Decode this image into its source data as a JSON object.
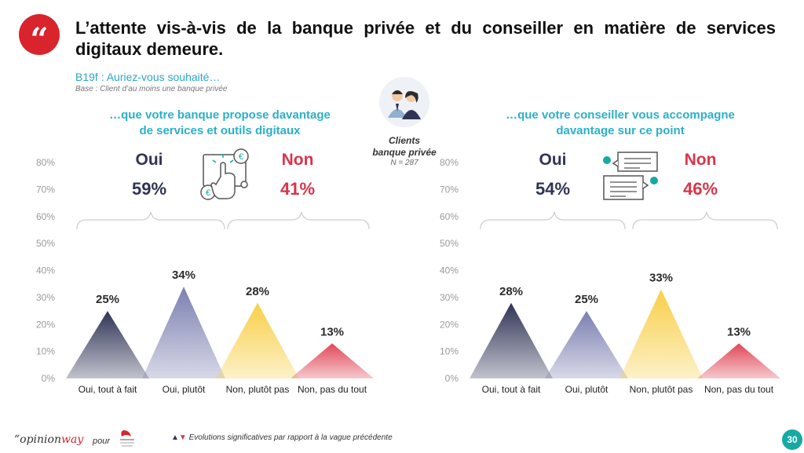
{
  "title": "L’attente vis-à-vis de la banque privée et du conseiller en matière de services digitaux demeure.",
  "question": "B19f : Auriez-vous souhaité…",
  "base": "Base : Client d’au moins une banque privée",
  "center": {
    "label_line1": "Clients",
    "label_line2": "banque privée",
    "n": "N = 287"
  },
  "left": {
    "subheading_line1": "…que votre banque propose davantage",
    "subheading_line2": "de services et outils digitaux",
    "oui_label": "Oui",
    "oui_value": "59%",
    "non_label": "Non",
    "non_value": "41%"
  },
  "right": {
    "subheading_line1": "…que votre conseiller vous accompagne",
    "subheading_line2": "davantage sur ce point",
    "oui_label": "Oui",
    "oui_value": "54%",
    "non_label": "Non",
    "non_value": "46%"
  },
  "colors": {
    "accent": "#2ab0c8",
    "oui": "#2f3456",
    "non": "#d9344a",
    "brand_red": "#d9232d",
    "page_badge": "#17a9a4"
  },
  "footer": {
    "brand_opinion": "“opinion",
    "brand_way": "way",
    "pour": "pour",
    "note": "Evolutions significatives par rapport à la vague précédente",
    "page": "30"
  },
  "chart_data": [
    {
      "type": "bar",
      "categories": [
        "Oui, tout à fait",
        "Oui, plutôt",
        "Non, plutôt pas",
        "Non, pas du tout"
      ],
      "values": [
        25,
        34,
        28,
        13
      ],
      "value_labels": [
        "25%",
        "34%",
        "28%",
        "13%"
      ],
      "ylim": [
        0,
        80
      ],
      "yticks": [
        "0%",
        "10%",
        "20%",
        "30%",
        "40%",
        "50%",
        "60%",
        "70%",
        "80%"
      ],
      "colors": [
        "#2f3456",
        "#7b7fb0",
        "#f8cf48",
        "#e04858"
      ],
      "grid": false
    },
    {
      "type": "bar",
      "categories": [
        "Oui, tout à fait",
        "Oui, plutôt",
        "Non, plutôt pas",
        "Non, pas du tout"
      ],
      "values": [
        28,
        25,
        33,
        13
      ],
      "value_labels": [
        "28%",
        "25%",
        "33%",
        "13%"
      ],
      "ylim": [
        0,
        80
      ],
      "yticks": [
        "0%",
        "10%",
        "20%",
        "30%",
        "40%",
        "50%",
        "60%",
        "70%",
        "80%"
      ],
      "colors": [
        "#2f3456",
        "#7b7fb0",
        "#f8cf48",
        "#e04858"
      ],
      "grid": false
    }
  ]
}
